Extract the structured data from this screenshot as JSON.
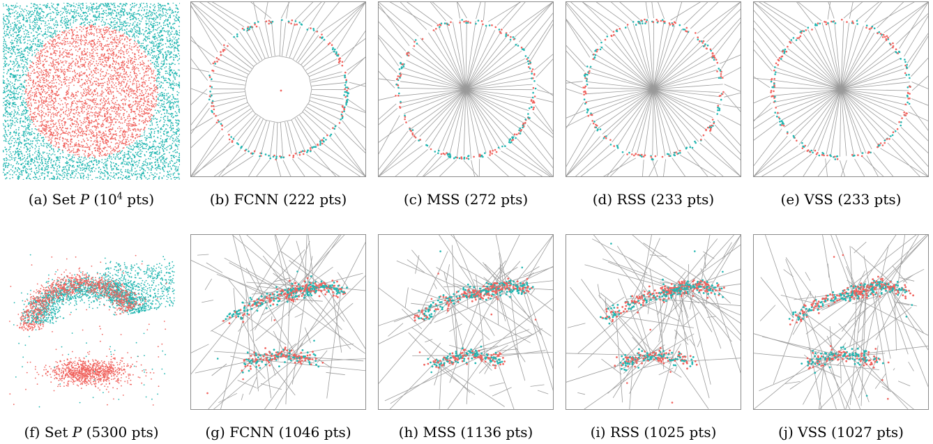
{
  "colors": {
    "red": "#f0625d",
    "teal": "#1fb5b0",
    "edge": "#9a9a9a",
    "frame": "#8a8a8a"
  },
  "rows": [
    {
      "set_caption": {
        "prefix": "(a) Set ",
        "var": "P",
        "mid": " (10",
        "sup": "4",
        "suffix": " pts)"
      },
      "panels": [
        {
          "caption": "(b) FCNN (222 pts)",
          "kept": 222
        },
        {
          "caption": "(c) MSS (272 pts)",
          "kept": 272
        },
        {
          "caption": "(d) RSS (233 pts)",
          "kept": 233
        },
        {
          "caption": "(e) VSS (233 pts)",
          "kept": 233
        }
      ]
    },
    {
      "set_caption": {
        "prefix": "(f) Set ",
        "var": "P",
        "mid": " (5300 pts)",
        "sup": "",
        "suffix": ""
      },
      "panels": [
        {
          "caption": "(g) FCNN (1046 pts)",
          "kept": 1046
        },
        {
          "caption": "(h) MSS (1136 pts)",
          "kept": 1136
        },
        {
          "caption": "(i) RSS (1025 pts)",
          "kept": 1025
        },
        {
          "caption": "(j) VSS (1027 pts)",
          "kept": 1027
        }
      ]
    }
  ]
}
